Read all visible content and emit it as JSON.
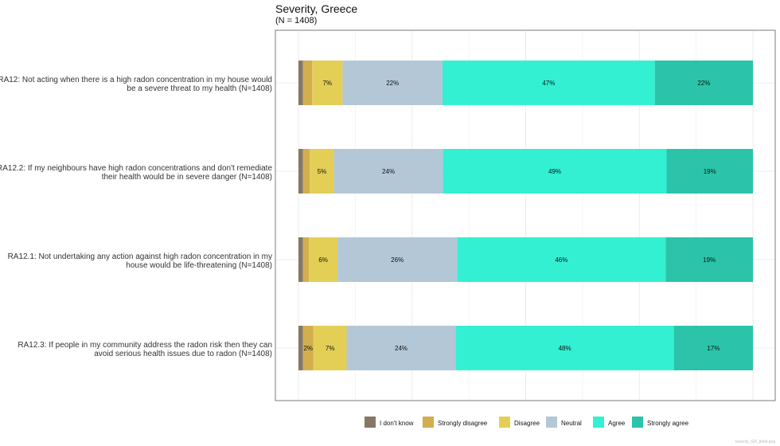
{
  "chart_data": {
    "type": "bar",
    "orientation": "horizontal",
    "stacked": true,
    "title": "Severity, Greece",
    "subtitle": "(N = 1408)",
    "xlabel": "",
    "ylabel": "",
    "xlim": [
      0,
      100
    ],
    "grid": true,
    "legend_position": "bottom",
    "categories": [
      "RA12: Not acting when there is a high radon concentration in my house would|be a severe threat to my health (N=1408)",
      "RA12.2: If my neighbours have high radon concentrations and don't remediate|their health would be in severe danger (N=1408)",
      "RA12.1: Not undertaking any action against high radon concentration in my|house would be life-threatening (N=1408)",
      "RA12.3: If people in my community address the radon risk then they can|avoid serious health issues due to radon (N=1408)"
    ],
    "series": [
      {
        "name": "I don't know",
        "color": "#867865",
        "values": [
          1,
          1,
          1,
          1
        ],
        "labels": [
          "",
          "",
          "",
          ""
        ]
      },
      {
        "name": "Strongly disagree",
        "color": "#d3ae4e",
        "values": [
          2,
          1.5,
          1.3,
          2.3
        ],
        "labels": [
          "",
          "",
          "",
          "2%"
        ]
      },
      {
        "name": "Disagree",
        "color": "#e3cf56",
        "values": [
          6.7,
          5.3,
          6.3,
          7.3
        ],
        "labels": [
          "7%",
          "5%",
          "6%",
          "7%"
        ]
      },
      {
        "name": "Neutral",
        "color": "#b3c7d7",
        "values": [
          22,
          24,
          26.3,
          24
        ],
        "labels": [
          "22%",
          "24%",
          "26%",
          "24%"
        ]
      },
      {
        "name": "Agree",
        "color": "#33f0d2",
        "values": [
          46.7,
          49.2,
          45.9,
          48
        ],
        "labels": [
          "47%",
          "49%",
          "46%",
          "48%"
        ]
      },
      {
        "name": "Strongly agree",
        "color": "#2bc4aa",
        "values": [
          21.6,
          19,
          19.2,
          17.4
        ],
        "labels": [
          "22%",
          "19%",
          "19%",
          "17%"
        ]
      }
    ]
  },
  "watermark": "severity_GR_titled.png"
}
